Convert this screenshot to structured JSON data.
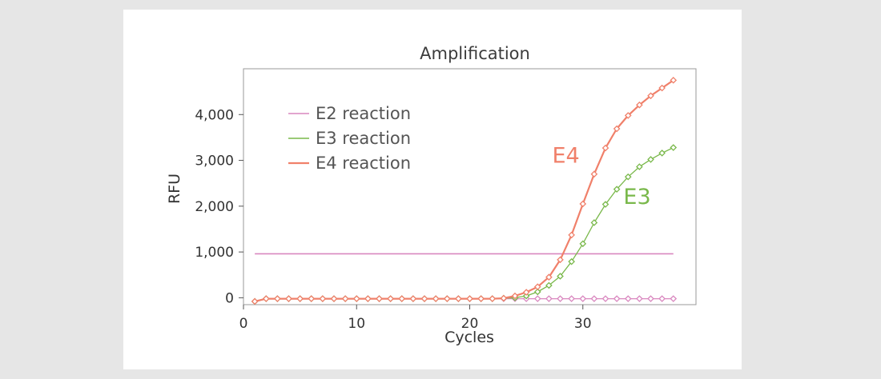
{
  "chart_data": {
    "type": "line",
    "title": "Amplification",
    "xlabel": "Cycles",
    "ylabel": "RFU",
    "xlim": [
      0,
      40
    ],
    "ylim": [
      -150,
      5000
    ],
    "xticks": [
      0,
      10,
      20,
      30
    ],
    "yticks": [
      0,
      1000,
      2000,
      3000,
      4000
    ],
    "xtick_labels": [
      "0",
      "10",
      "20",
      "30"
    ],
    "ytick_labels": [
      "0",
      "1,000",
      "2,000",
      "3,000",
      "4,000"
    ],
    "grid": false,
    "legend_position": "top-left",
    "legend": [
      {
        "label": "E2 reaction",
        "color": "#d987bf"
      },
      {
        "label": "E3 reaction",
        "color": "#79b84a"
      },
      {
        "label": "E4 reaction",
        "color": "#f0806a"
      }
    ],
    "series": [
      {
        "name": "E2 reaction",
        "color": "#d987bf",
        "x": [
          1,
          2,
          3,
          4,
          5,
          6,
          7,
          8,
          9,
          10,
          11,
          12,
          13,
          14,
          15,
          16,
          17,
          18,
          19,
          20,
          21,
          22,
          23,
          24,
          25,
          26,
          27,
          28,
          29,
          30,
          31,
          32,
          33,
          34,
          35,
          36,
          37,
          38
        ],
        "y": [
          -80,
          -20,
          -20,
          -20,
          -20,
          -20,
          -20,
          -20,
          -20,
          -20,
          -20,
          -20,
          -20,
          -20,
          -20,
          -20,
          -20,
          -20,
          -20,
          -20,
          -20,
          -20,
          -20,
          -20,
          -20,
          -20,
          -20,
          -20,
          -20,
          -20,
          -20,
          -20,
          -20,
          -20,
          -20,
          -20,
          -20,
          -20
        ]
      },
      {
        "name": "E3 reaction",
        "color": "#79b84a",
        "x": [
          1,
          2,
          3,
          4,
          5,
          6,
          7,
          8,
          9,
          10,
          11,
          12,
          13,
          14,
          15,
          16,
          17,
          18,
          19,
          20,
          21,
          22,
          23,
          24,
          25,
          26,
          27,
          28,
          29,
          30,
          31,
          32,
          33,
          34,
          35,
          36,
          37,
          38
        ],
        "y": [
          -80,
          -20,
          -20,
          -20,
          -20,
          -20,
          -20,
          -20,
          -20,
          -20,
          -20,
          -20,
          -20,
          -20,
          -20,
          -20,
          -20,
          -20,
          -20,
          -20,
          -20,
          -20,
          -10,
          0,
          40,
          130,
          270,
          470,
          790,
          1180,
          1640,
          2040,
          2370,
          2640,
          2860,
          3020,
          3160,
          3280
        ]
      },
      {
        "name": "E4 reaction",
        "color": "#f0806a",
        "x": [
          1,
          2,
          3,
          4,
          5,
          6,
          7,
          8,
          9,
          10,
          11,
          12,
          13,
          14,
          15,
          16,
          17,
          18,
          19,
          20,
          21,
          22,
          23,
          24,
          25,
          26,
          27,
          28,
          29,
          30,
          31,
          32,
          33,
          34,
          35,
          36,
          37,
          38
        ],
        "y": [
          -80,
          -20,
          -20,
          -20,
          -20,
          -20,
          -20,
          -20,
          -20,
          -20,
          -20,
          -20,
          -20,
          -20,
          -20,
          -20,
          -20,
          -20,
          -20,
          -20,
          -20,
          -20,
          -10,
          40,
          120,
          240,
          450,
          830,
          1370,
          2050,
          2700,
          3270,
          3690,
          3980,
          4210,
          4410,
          4580,
          4750
        ]
      }
    ],
    "threshold": {
      "y": 960,
      "x_range": [
        1,
        38
      ],
      "color": "#d987bf"
    },
    "annotations": [
      {
        "text": "E4",
        "x": 28.5,
        "y": 2950,
        "color": "#f0806a"
      },
      {
        "text": "E3",
        "x": 34.8,
        "y": 2050,
        "color": "#79b84a"
      }
    ]
  }
}
